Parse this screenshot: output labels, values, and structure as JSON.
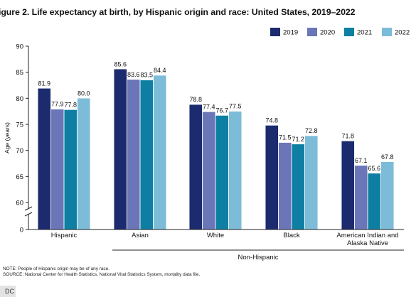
{
  "title": "igure 2. Life expectancy at birth, by Hispanic origin and race: United States, 2019–2022",
  "notes": [
    "NOTE: People of Hispanic origin may be of any race.",
    "SOURCE: National Center for Health Statistics, National Vital Statistics System, mortality data file."
  ],
  "watermark": "DC",
  "colors": {
    "2019": "#1c2a6e",
    "2020": "#6a76b8",
    "2021": "#0e7fa3",
    "2022": "#7cbcd8"
  },
  "chart_data": {
    "type": "bar",
    "ylabel": "Age (years)",
    "xlabel": "",
    "ylim": [
      0,
      90
    ],
    "axis_break": true,
    "yticks": [
      0,
      60,
      65,
      70,
      75,
      80,
      85,
      90
    ],
    "grid": false,
    "legend_position": "top-right",
    "categories": [
      "Hispanic",
      "Asian",
      "White",
      "Black",
      "American Indian and Alaska Native"
    ],
    "category_lines": [
      [
        "Hispanic"
      ],
      [
        "Asian"
      ],
      [
        "White"
      ],
      [
        "Black"
      ],
      [
        "American Indian and",
        "Alaska Native"
      ]
    ],
    "group_label": "Non-Hispanic",
    "series": [
      {
        "name": "2019",
        "values": [
          81.9,
          85.6,
          78.8,
          74.8,
          71.8
        ]
      },
      {
        "name": "2020",
        "values": [
          77.9,
          83.6,
          77.4,
          71.5,
          67.1
        ]
      },
      {
        "name": "2021",
        "values": [
          77.8,
          83.5,
          76.7,
          71.2,
          65.6
        ]
      },
      {
        "name": "2022",
        "values": [
          80.0,
          84.4,
          77.5,
          72.8,
          67.8
        ]
      }
    ]
  }
}
